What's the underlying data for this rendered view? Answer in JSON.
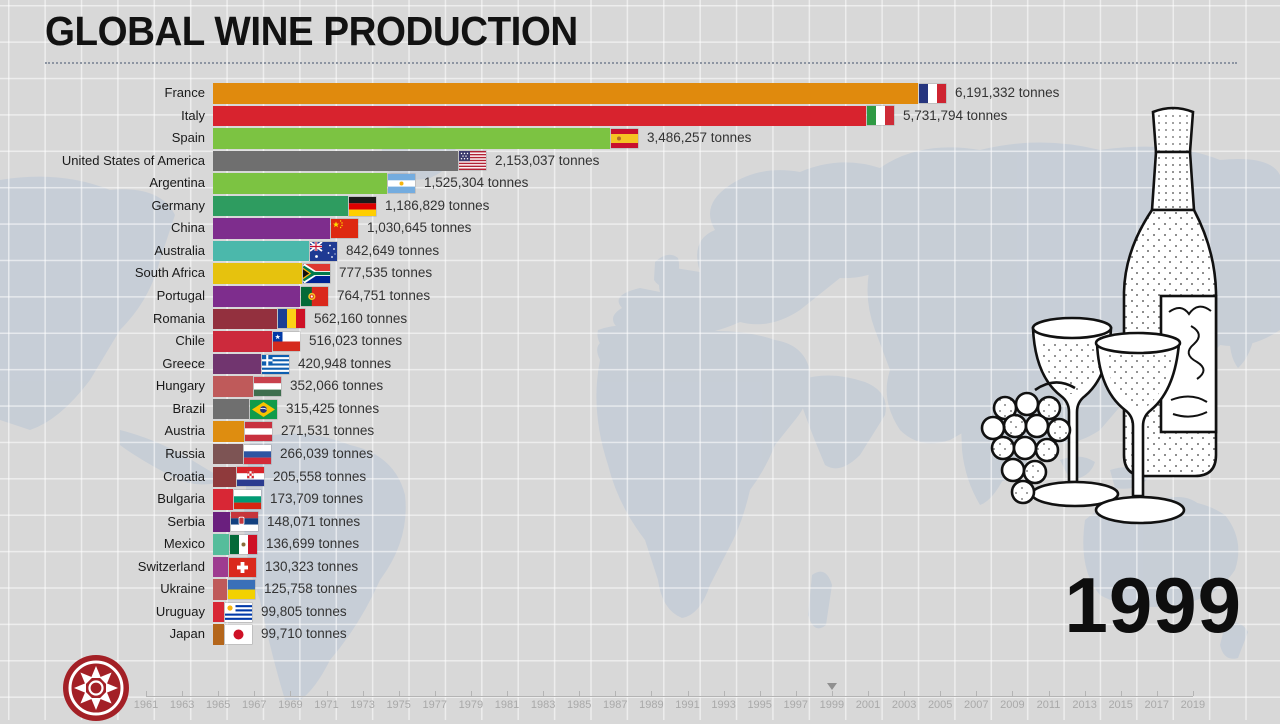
{
  "header": {
    "title": "GLOBAL WINE PRODUCTION"
  },
  "year_display": {
    "value": "1999"
  },
  "chart_data": {
    "type": "bar",
    "orientation": "horizontal",
    "title": "GLOBAL WINE PRODUCTION",
    "unit": "tonnes",
    "year": "1999",
    "xlim": [
      0,
      6191332
    ],
    "rows": [
      {
        "country": "France",
        "value": 6191332,
        "label": "6,191,332 tonnes",
        "color": "#E08A0D",
        "flag": "france"
      },
      {
        "country": "Italy",
        "value": 5731794,
        "label": "5,731,794 tonnes",
        "color": "#D8232E",
        "flag": "italy"
      },
      {
        "country": "Spain",
        "value": 3486257,
        "label": "3,486,257 tonnes",
        "color": "#7CC342",
        "flag": "spain"
      },
      {
        "country": "United States of America",
        "value": 2153037,
        "label": "2,153,037 tonnes",
        "color": "#6F6F6F",
        "flag": "usa"
      },
      {
        "country": "Argentina",
        "value": 1525304,
        "label": "1,525,304 tonnes",
        "color": "#7CC342",
        "flag": "argentina"
      },
      {
        "country": "Germany",
        "value": 1186829,
        "label": "1,186,829 tonnes",
        "color": "#2E9C60",
        "flag": "germany"
      },
      {
        "country": "China",
        "value": 1030645,
        "label": "1,030,645 tonnes",
        "color": "#7E2D8D",
        "flag": "china"
      },
      {
        "country": "Australia",
        "value": 842649,
        "label": "842,649 tonnes",
        "color": "#4BB8AB",
        "flag": "australia"
      },
      {
        "country": "South Africa",
        "value": 777535,
        "label": "777,535 tonnes",
        "color": "#E6C20E",
        "flag": "south-africa"
      },
      {
        "country": "Portugal",
        "value": 764751,
        "label": "764,751 tonnes",
        "color": "#7E2D8D",
        "flag": "portugal"
      },
      {
        "country": "Romania",
        "value": 562160,
        "label": "562,160 tonnes",
        "color": "#93303E",
        "flag": "romania"
      },
      {
        "country": "Chile",
        "value": 516023,
        "label": "516,023 tonnes",
        "color": "#CC2A3C",
        "flag": "chile"
      },
      {
        "country": "Greece",
        "value": 420948,
        "label": "420,948 tonnes",
        "color": "#71356F",
        "flag": "greece"
      },
      {
        "country": "Hungary",
        "value": 352066,
        "label": "352,066 tonnes",
        "color": "#BF5A5A",
        "flag": "hungary"
      },
      {
        "country": "Brazil",
        "value": 315425,
        "label": "315,425 tonnes",
        "color": "#6F6F6F",
        "flag": "brazil"
      },
      {
        "country": "Austria",
        "value": 271531,
        "label": "271,531 tonnes",
        "color": "#DE8D10",
        "flag": "austria"
      },
      {
        "country": "Russia",
        "value": 266039,
        "label": "266,039 tonnes",
        "color": "#7D5454",
        "flag": "russia"
      },
      {
        "country": "Croatia",
        "value": 205558,
        "label": "205,558 tonnes",
        "color": "#8F3A3C",
        "flag": "croatia"
      },
      {
        "country": "Bulgaria",
        "value": 173709,
        "label": "173,709 tonnes",
        "color": "#D82735",
        "flag": "bulgaria"
      },
      {
        "country": "Serbia",
        "value": 148071,
        "label": "148,071 tonnes",
        "color": "#6A1F7E",
        "flag": "serbia"
      },
      {
        "country": "Mexico",
        "value": 136699,
        "label": "136,699 tonnes",
        "color": "#55BD9B",
        "flag": "mexico"
      },
      {
        "country": "Switzerland",
        "value": 130323,
        "label": "130,323 tonnes",
        "color": "#9E3C90",
        "flag": "switzerland"
      },
      {
        "country": "Ukraine",
        "value": 125758,
        "label": "125,758 tonnes",
        "color": "#BF5A5A",
        "flag": "ukraine"
      },
      {
        "country": "Uruguay",
        "value": 99805,
        "label": "99,805 tonnes",
        "color": "#D82735",
        "flag": "uruguay"
      },
      {
        "country": "Japan",
        "value": 99710,
        "label": "99,710 tonnes",
        "color": "#B4661B",
        "flag": "japan"
      }
    ]
  },
  "timeline": {
    "years": [
      "1961",
      "1963",
      "1965",
      "1967",
      "1969",
      "1971",
      "1973",
      "1975",
      "1977",
      "1979",
      "1981",
      "1983",
      "1985",
      "1987",
      "1989",
      "1991",
      "1993",
      "1995",
      "1997",
      "1999",
      "2001",
      "2003",
      "2005",
      "2007",
      "2009",
      "2011",
      "2013",
      "2015",
      "2017",
      "2019"
    ],
    "current_year": "1999"
  },
  "icons": {
    "logo": "sun-wheel-logo",
    "illustration": "wine-bottle-glasses-grapes",
    "playhead": "timeline-playhead-triangle"
  },
  "colors": {
    "background": "#D8D8D8",
    "map": "#BDC8D6",
    "label_text": "#1A1A1A",
    "value_text": "#333333",
    "axis_text": "#A9A9A9"
  }
}
